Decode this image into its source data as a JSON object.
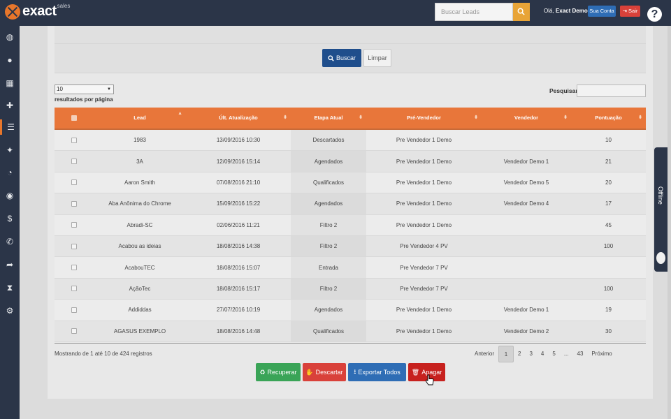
{
  "app": {
    "brand": "exact",
    "brand_sub": "sales"
  },
  "topbar": {
    "search_placeholder": "Buscar Leads",
    "greeting_prefix": "Olá,",
    "greeting_name": "Exact Demo",
    "account_label": "Sua Conta",
    "logout_label": "Sair",
    "help_label": "?"
  },
  "sidebar": {
    "icons": [
      "dashboard-icon",
      "user-icon",
      "calendar-icon",
      "plus-icon",
      "table-icon",
      "pin-icon",
      "pie-chart-icon",
      "clock-circle-icon",
      "dollar-icon",
      "phone-icon",
      "share-icon",
      "hourglass-icon",
      "settings-icon"
    ]
  },
  "filters": {
    "search_button": "Buscar",
    "clear_button": "Limpar"
  },
  "controls": {
    "page_size": "10",
    "per_page_label": "resultados por página",
    "search_label": "Pesquisar"
  },
  "table": {
    "headers": [
      "Lead",
      "Últ. Atualização",
      "Etapa Atual",
      "Pré-Vendedor",
      "Vendedor",
      "Pontuação"
    ],
    "rows": [
      [
        "1983",
        "13/09/2016 10:30",
        "Descartados",
        "Pre Vendedor 1 Demo",
        "",
        "10"
      ],
      [
        "3A",
        "12/09/2016 15:14",
        "Agendados",
        "Pre Vendedor 1 Demo",
        "Vendedor Demo 1",
        "21"
      ],
      [
        "Aaron Smith",
        "07/08/2016 21:10",
        "Qualificados",
        "Pre Vendedor 1 Demo",
        "Vendedor Demo 5",
        "20"
      ],
      [
        "Aba Anônima do Chrome",
        "15/09/2016 15:22",
        "Agendados",
        "Pre Vendedor 1 Demo",
        "Vendedor Demo 4",
        "17"
      ],
      [
        "Abradi-SC",
        "02/06/2016 11:21",
        "Filtro 2",
        "Pre Vendedor 1 Demo",
        "",
        "45"
      ],
      [
        "Acabou as ideias",
        "18/08/2016 14:38",
        "Filtro 2",
        "Pre Vendedor 4 PV",
        "",
        "100"
      ],
      [
        "AcabouTEC",
        "18/08/2016 15:07",
        "Entrada",
        "Pre Vendedor 7 PV",
        "",
        ""
      ],
      [
        "AçãoTec",
        "18/08/2016 15:17",
        "Filtro 2",
        "Pre Vendedor 7 PV",
        "",
        "100"
      ],
      [
        "Addiddas",
        "27/07/2016 10:19",
        "Agendados",
        "Pre Vendedor 1 Demo",
        "Vendedor Demo 1",
        "19"
      ],
      [
        "AGASUS EXEMPLO",
        "18/08/2016 14:48",
        "Qualificados",
        "Pre Vendedor 1 Demo",
        "Vendedor Demo 2",
        "30"
      ]
    ]
  },
  "footer": {
    "showing": "Mostrando de 1 até 10 de 424 registros",
    "prev": "Anterior",
    "pages": [
      "1",
      "2",
      "3",
      "4",
      "5",
      "...",
      "43"
    ],
    "next": "Próximo"
  },
  "actions": {
    "recover": "Recuperar",
    "discard": "Descartar",
    "export": "Exportar Todos",
    "delete": "Apagar"
  },
  "chat": {
    "status": "Offline"
  },
  "colors": {
    "header_bg": "#2b3548",
    "accent": "#e8762b",
    "primary": "#1f4e8c",
    "success": "#3aa457",
    "danger": "#d9413a"
  }
}
